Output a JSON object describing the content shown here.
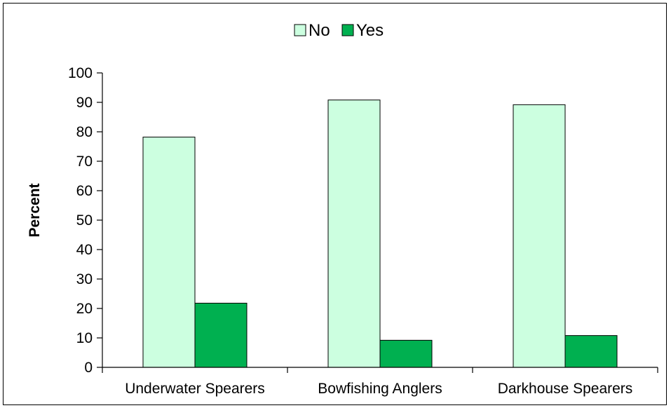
{
  "chart_data": {
    "type": "bar",
    "title": "",
    "xlabel": "",
    "ylabel": "Percent",
    "ylim": [
      0,
      100
    ],
    "yticks": [
      0,
      10,
      20,
      30,
      40,
      50,
      60,
      70,
      80,
      90,
      100
    ],
    "grid": false,
    "legend_position": "top-center",
    "categories": [
      "Underwater Spearers",
      "Bowfishing Anglers",
      "Darkhouse Spearers"
    ],
    "series": [
      {
        "name": "No",
        "color": "#ccffe0",
        "values": [
          78.2,
          90.8,
          89.2
        ]
      },
      {
        "name": "Yes",
        "color": "#00b050",
        "values": [
          21.8,
          9.2,
          10.8
        ]
      }
    ]
  }
}
